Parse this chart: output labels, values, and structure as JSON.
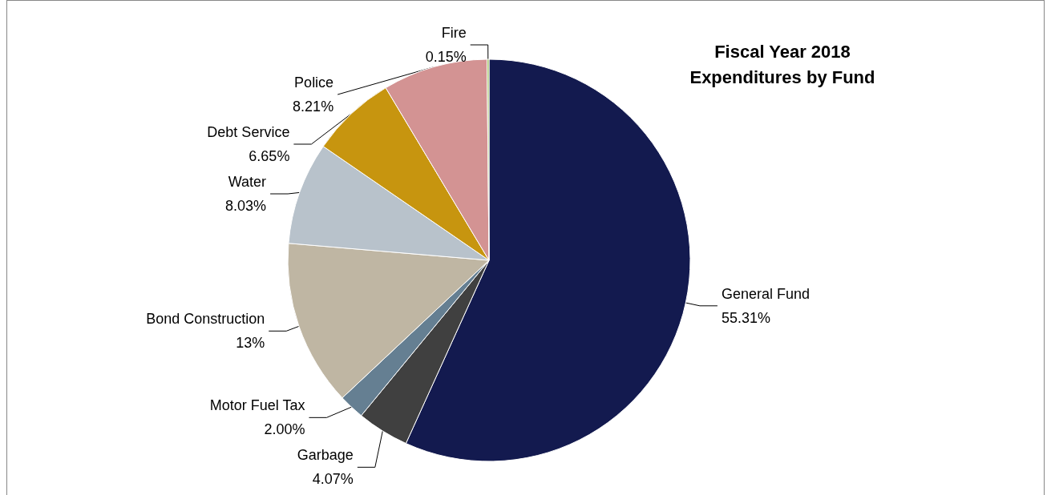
{
  "chart_data": {
    "type": "pie",
    "title": "Fiscal Year 2018\nExpenditures by Fund",
    "categories": [
      "General Fund",
      "Garbage",
      "Motor Fuel Tax",
      "Bond Construction",
      "Water",
      "Debt Service",
      "Police",
      "Fire"
    ],
    "values": [
      55.31,
      4.07,
      2.0,
      13,
      8.03,
      6.65,
      8.21,
      0.15
    ],
    "value_labels": [
      "55.31%",
      "4.07%",
      "2.00%",
      "13%",
      "8.03%",
      "6.65%",
      "8.21%",
      "0.15%"
    ],
    "colors": [
      "#131a4f",
      "#404040",
      "#657f92",
      "#bfb6a3",
      "#b8c2cb",
      "#c7950f",
      "#d39393",
      "#9bbb59"
    ],
    "legend": false
  }
}
